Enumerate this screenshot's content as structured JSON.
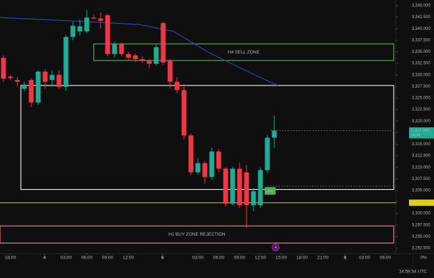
{
  "chart_data": {
    "type": "candlestick",
    "x": [
      0,
      1,
      2,
      3,
      4,
      5,
      6,
      7,
      8,
      9,
      10,
      11,
      12,
      13,
      14,
      15,
      16,
      17,
      18,
      19,
      20,
      21,
      22,
      23,
      24,
      25,
      26,
      27,
      28,
      29,
      30,
      31,
      32,
      33,
      34,
      35,
      36,
      37,
      38,
      39
    ],
    "open": [
      3333.7,
      3329.6,
      3328.9,
      3327.0,
      3328.9,
      3324.0,
      3330.7,
      3328.9,
      3330.0,
      3327.4,
      3338.2,
      3339.4,
      3339.4,
      3342.4,
      3342.2,
      3342.9,
      3334.5,
      3336.7,
      3334.5,
      3334.2,
      3333.4,
      3333.0,
      3332.4,
      3341.2,
      3333.0,
      3328.5,
      3326.7,
      3316.9,
      3308.9,
      3310.9,
      3307.9,
      3313.4,
      3309.7,
      3302.1,
      3309.7,
      3308.9,
      3301.8,
      3301.8,
      3309.4,
      3316.4
    ],
    "high": [
      3334.2,
      3330.0,
      3329.5,
      3328.5,
      3329.3,
      3331.0,
      3331.3,
      3331.0,
      3331.0,
      3338.6,
      3341.5,
      3342.0,
      3344.0,
      3343.0,
      3343.5,
      3343.2,
      3337.2,
      3337.0,
      3335.0,
      3334.6,
      3334.0,
      3333.5,
      3336.5,
      3341.5,
      3333.5,
      3329.5,
      3328.0,
      3317.3,
      3312.0,
      3311.3,
      3314.2,
      3314.0,
      3310.0,
      3310.2,
      3311.0,
      3310.5,
      3305.5,
      3310.0,
      3317.0,
      3321.2
    ],
    "low": [
      3328.5,
      3328.8,
      3327.5,
      3326.5,
      3323.0,
      3323.5,
      3327.0,
      3327.5,
      3327.0,
      3326.5,
      3337.5,
      3338.5,
      3339.0,
      3342.0,
      3340.0,
      3334.0,
      3333.8,
      3334.0,
      3333.0,
      3332.8,
      3332.5,
      3331.4,
      3332.0,
      3332.2,
      3327.0,
      3326.0,
      3316.0,
      3308.3,
      3308.4,
      3306.5,
      3307.3,
      3309.0,
      3301.5,
      3301.8,
      3301.2,
      3296.9,
      3300.5,
      3301.2,
      3308.8,
      3314.2
    ],
    "close": [
      3329.2,
      3329.3,
      3328.5,
      3327.9,
      3324.0,
      3330.7,
      3328.5,
      3330.0,
      3327.4,
      3338.2,
      3340.6,
      3340.5,
      3342.4,
      3342.2,
      3341.7,
      3334.5,
      3336.7,
      3334.5,
      3333.7,
      3333.4,
      3333.0,
      3332.4,
      3336.0,
      3332.7,
      3328.5,
      3326.7,
      3316.9,
      3308.9,
      3310.9,
      3307.9,
      3313.4,
      3309.7,
      3302.1,
      3309.7,
      3301.8,
      3301.8,
      3304.8,
      3309.4,
      3316.4,
      3317.9
    ],
    "up_color": "#22ab94",
    "down_color": "#f23645",
    "ma": {
      "color": "#2f45a8",
      "x": [
        -0.5,
        9.5,
        19.5,
        24.5,
        29.5,
        34.5,
        39.5
      ],
      "values": [
        3342.4,
        3341.7,
        3340.9,
        3339.4,
        3334.9,
        3331.2,
        3327.7
      ]
    },
    "xlim": [
      -0.5,
      56.5
    ],
    "ylim": [
      3291.3,
      3346.2
    ],
    "xticks": [
      {
        "value": 1,
        "label": "18:00"
      },
      {
        "value": 5.9,
        "label": "4"
      },
      {
        "value": 9,
        "label": "03:00"
      },
      {
        "value": 12,
        "label": "06:00"
      },
      {
        "value": 15,
        "label": "09:00"
      },
      {
        "value": 18,
        "label": "12:00"
      },
      {
        "value": 22.9,
        "label": "6"
      },
      {
        "value": 28,
        "label": "03:00"
      },
      {
        "value": 31,
        "label": "06:00"
      },
      {
        "value": 34,
        "label": "09:00"
      },
      {
        "value": 37,
        "label": "12:00"
      },
      {
        "value": 40,
        "label": "15:00"
      },
      {
        "value": 43,
        "label": "18:00"
      },
      {
        "value": 46,
        "label": "21:00"
      },
      {
        "value": 49.2,
        "label": "8"
      },
      {
        "value": 52,
        "label": "03:00"
      },
      {
        "value": 55,
        "label": "06:00"
      }
    ],
    "yticks": [
      {
        "value": 3345,
        "label": "3,345.000"
      },
      {
        "value": 3342.5,
        "label": "3,342.500"
      },
      {
        "value": 3340,
        "label": "3,340.000"
      },
      {
        "value": 3337.5,
        "label": "3,337.500"
      },
      {
        "value": 3335,
        "label": "3,335.000"
      },
      {
        "value": 3332.5,
        "label": "3,332.500"
      },
      {
        "value": 3330,
        "label": "3,330.000"
      },
      {
        "value": 3327.5,
        "label": "3,327.500"
      },
      {
        "value": 3325,
        "label": "3,325.000"
      },
      {
        "value": 3322.5,
        "label": "3,322.500"
      },
      {
        "value": 3320,
        "label": "3,320.000"
      },
      {
        "value": 3317.5,
        "label": "3,317.500"
      },
      {
        "value": 3315,
        "label": "3,315.000"
      },
      {
        "value": 3312.5,
        "label": "3,312.500"
      },
      {
        "value": 3310,
        "label": "3,310.000"
      },
      {
        "value": 3307.5,
        "label": "3,307.500"
      },
      {
        "value": 3305,
        "label": "3,305.000"
      },
      {
        "value": 3302.5,
        "label": "3,302.500"
      },
      {
        "value": 3300,
        "label": "3,300.000"
      },
      {
        "value": 3297.5,
        "label": "3,297.500"
      },
      {
        "value": 3295,
        "label": "3,295.000"
      },
      {
        "value": 3292.5,
        "label": "3,292.500"
      }
    ],
    "zones": [
      {
        "label": "H4 SELL ZONE",
        "x": [
          13,
          56.2
        ],
        "y": [
          3333.1,
          3336.7
        ],
        "color": "#4caf50"
      },
      {
        "x": [
          2.5,
          56.2
        ],
        "y": [
          3305.2,
          3327.7
        ],
        "color": "#e8e8e8"
      },
      {
        "label": "H1 BUY ZONE REJECTION",
        "x": [
          -0.5,
          56.2
        ],
        "y": [
          3293.6,
          3297.3
        ],
        "color": "#f77c8a"
      }
    ],
    "hlines": [
      {
        "value": 3302.325,
        "color": "#e6d400",
        "x": [
          -0.5,
          56.5
        ]
      },
      {
        "value": 3317.965,
        "color": "#5d606b",
        "x": [
          38.5,
          56.5
        ],
        "dashed": true
      },
      {
        "value": 3305.9,
        "color": "#5d606b",
        "x": [
          38,
          56.5
        ],
        "dashed": true
      }
    ],
    "price_labels": [
      {
        "value": 3317.965,
        "label": "3,317.965",
        "sub": "03:06",
        "color": "#22ab94"
      },
      {
        "value": 3302.325,
        "label": "3,302.325",
        "color": "#e6d400"
      }
    ],
    "marker": {
      "text": "Buy",
      "x": 38.2,
      "y": 3304.8,
      "color": "#4caf50"
    },
    "clock": "14:58:54 UTC",
    "percent": "0%"
  }
}
